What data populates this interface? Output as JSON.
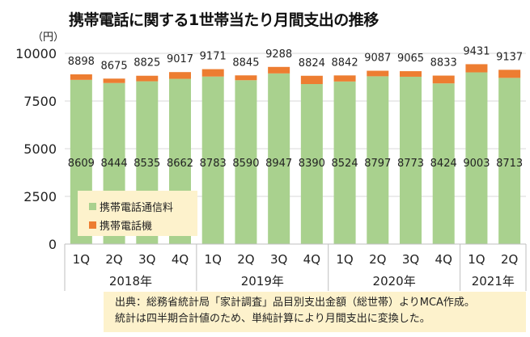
{
  "title": "携帯電話に関する1世帯当たり月間支出の推移",
  "chart_data": {
    "type": "bar",
    "stacked": true,
    "title": "携帯電話に関する1世帯当たり月間支出の推移",
    "ylabel": "（円）",
    "ylim": [
      0,
      10000
    ],
    "yticks": [
      "0",
      "2500",
      "5000",
      "7500",
      "10000"
    ],
    "categories": [
      "1Q",
      "2Q",
      "3Q",
      "4Q",
      "1Q",
      "2Q",
      "3Q",
      "4Q",
      "1Q",
      "2Q",
      "3Q",
      "4Q",
      "1Q",
      "2Q"
    ],
    "years": [
      {
        "label": "2018年",
        "count": 4
      },
      {
        "label": "2019年",
        "count": 4
      },
      {
        "label": "2020年",
        "count": 4
      },
      {
        "label": "2021年",
        "count": 2
      }
    ],
    "series": [
      {
        "name": "携帯電話通信料",
        "color": "#a9d18e",
        "values": [
          8609,
          8444,
          8535,
          8662,
          8783,
          8590,
          8947,
          8390,
          8524,
          8797,
          8773,
          8424,
          9003,
          8713
        ]
      },
      {
        "name": "携帯電話機",
        "color": "#ed7d31",
        "values": [
          289,
          231,
          290,
          355,
          388,
          255,
          341,
          434,
          318,
          290,
          292,
          409,
          428,
          424
        ]
      }
    ],
    "totals": [
      8898,
      8675,
      8825,
      9017,
      9171,
      8845,
      9288,
      8824,
      8842,
      9087,
      9065,
      8833,
      9431,
      9137
    ],
    "legend_position": "bottom-left-inside"
  },
  "source": {
    "line1": "出典：総務省統計局「家計調査」品目別支出金額（総世帯）よりMCA作成。",
    "line2": "統計は四半期合計値のため、単純計算により月間支出に変換した。"
  }
}
